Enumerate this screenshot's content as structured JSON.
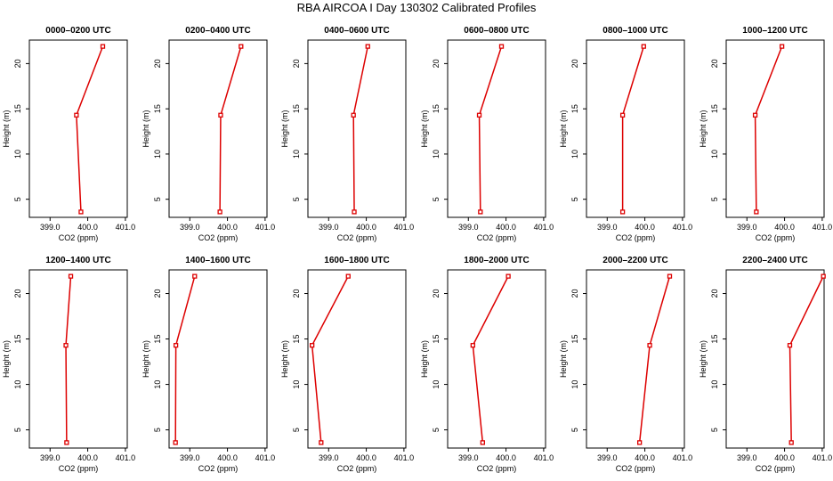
{
  "chart_data": {
    "type": "line",
    "title": "RBA AIRCOA I  Day 130302  Calibrated Profiles",
    "xlabel": "CO2 (ppm)",
    "ylabel": "Height (m)",
    "xlim": [
      398.45,
      401.05
    ],
    "ylim": [
      3,
      22.6
    ],
    "xticks": [
      "399.0",
      "400.0",
      "401.0"
    ],
    "yticks": [
      "5",
      "10",
      "15",
      "20"
    ],
    "line_color": "#dd0000",
    "marker_color": "#dd0000",
    "heights": [
      3.6,
      14.3,
      21.9
    ],
    "panels": [
      {
        "title": "0000–0200 UTC",
        "co2": [
          399.82,
          399.7,
          400.4
        ]
      },
      {
        "title": "0200–0400 UTC",
        "co2": [
          399.8,
          399.82,
          400.36
        ]
      },
      {
        "title": "0400–0600 UTC",
        "co2": [
          399.68,
          399.66,
          400.04
        ]
      },
      {
        "title": "0600–0800 UTC",
        "co2": [
          399.32,
          399.29,
          399.88
        ]
      },
      {
        "title": "0800–1000 UTC",
        "co2": [
          399.41,
          399.41,
          399.97
        ]
      },
      {
        "title": "1000–1200 UTC",
        "co2": [
          399.25,
          399.22,
          399.93
        ]
      },
      {
        "title": "1200–1400 UTC",
        "co2": [
          399.44,
          399.42,
          399.55
        ]
      },
      {
        "title": "1400–1600 UTC",
        "co2": [
          398.62,
          398.63,
          399.13
        ]
      },
      {
        "title": "1600–1800 UTC",
        "co2": [
          398.8,
          398.56,
          399.52
        ]
      },
      {
        "title": "1800–2000 UTC",
        "co2": [
          399.38,
          399.12,
          400.06
        ]
      },
      {
        "title": "2000–2200 UTC",
        "co2": [
          399.86,
          400.13,
          400.66
        ]
      },
      {
        "title": "2200–2400 UTC",
        "co2": [
          400.18,
          400.14,
          401.03
        ]
      }
    ]
  }
}
